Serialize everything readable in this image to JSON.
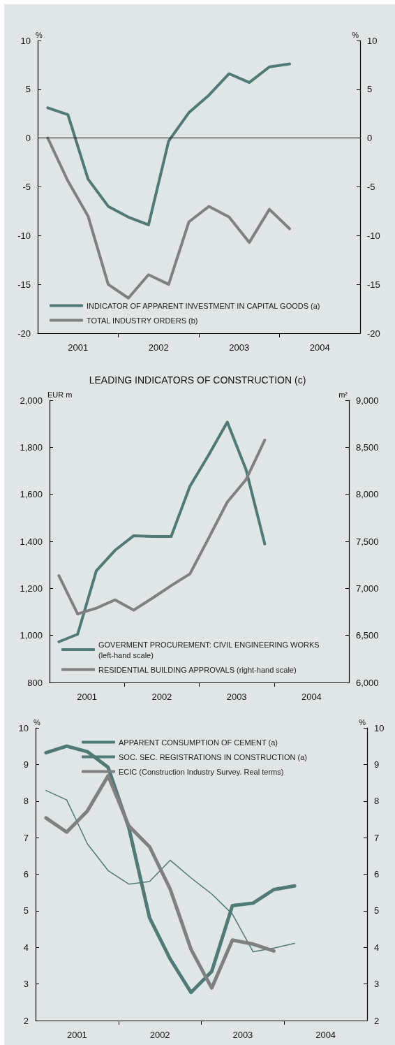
{
  "chart_data": [
    {
      "type": "line",
      "x": [
        2001.125,
        2001.375,
        2001.625,
        2001.875,
        2002.125,
        2002.375,
        2002.625,
        2002.875,
        2003.125,
        2003.375,
        2003.625,
        2003.875,
        2004.125
      ],
      "series": [
        {
          "name": "INDICATOR OF APPARENT INVESTMENT IN CAPITAL GOODS (a)",
          "color": "#4f7a77",
          "values": [
            3.1,
            2.4,
            -4.2,
            -7.0,
            -8.1,
            -8.9,
            -0.3,
            2.6,
            4.4,
            6.6,
            5.7,
            7.3,
            7.6
          ]
        },
        {
          "name": "TOTAL INDUSTRY ORDERS (b)",
          "color": "#808080",
          "values": [
            0,
            -4.4,
            -8.0,
            -15.0,
            -16.4,
            -14.0,
            -15.0,
            -8.6,
            -7.0,
            -8.1,
            -10.7,
            -7.3,
            -9.3
          ]
        }
      ],
      "xlim": [
        2001,
        2005
      ],
      "xticks": [
        {
          "value": 2001.5,
          "label": "2001"
        },
        {
          "value": 2002,
          "label": null
        },
        {
          "value": 2002.5,
          "label": "2002"
        },
        {
          "value": 2003,
          "label": null
        },
        {
          "value": 2003.5,
          "label": "2003"
        },
        {
          "value": 2004,
          "label": null
        },
        {
          "value": 2004.5,
          "label": "2004"
        }
      ],
      "ylim": [
        -20,
        10
      ],
      "yticks": [
        -20,
        -15,
        -10,
        -5,
        0,
        5,
        10
      ],
      "ylabel": "%",
      "y2lim": [
        -20,
        10
      ],
      "y2ticks": [
        -20,
        -15,
        -10,
        -5,
        0,
        5,
        10
      ],
      "y2label": "%",
      "ref_lines": [
        {
          "axis": "y",
          "value": 0,
          "color": "#000000"
        }
      ],
      "legend": "bottom left",
      "marker": "none",
      "line_style": "solid"
    },
    {
      "type": "line",
      "title": "LEADING INDICATORS OF CONSTRUCTION (c)",
      "x": [
        2001.125,
        2001.375,
        2001.625,
        2001.875,
        2002.125,
        2002.375,
        2002.625,
        2002.875,
        2003.125,
        2003.375,
        2003.625,
        2003.875
      ],
      "series": [
        {
          "name": "GOVERMENT PROCUREMENT: CIVIL ENGINEERING WORKS (left-hand scale)",
          "color": "#4f7a77",
          "values": [
            973,
            1005,
            1275,
            1362,
            1424,
            1421,
            1421,
            1634,
            1767,
            1907,
            1705,
            1389
          ]
        },
        {
          "name": "RESIDENTIAL BUILDING APPROVALS (right-hand scale)",
          "color": "#808080",
          "axis": "y2",
          "values": [
            7135,
            6729,
            6790,
            6878,
            6769,
            6897,
            7029,
            7154,
            7533,
            7918,
            8157,
            8576
          ]
        }
      ],
      "xlim": [
        2001,
        2005
      ],
      "xticks": [
        {
          "value": 2001.5,
          "label": "2001"
        },
        {
          "value": 2002,
          "label": null
        },
        {
          "value": 2002.5,
          "label": "2002"
        },
        {
          "value": 2003,
          "label": null
        },
        {
          "value": 2003.5,
          "label": "2003"
        },
        {
          "value": 2004,
          "label": null
        },
        {
          "value": 2004.5,
          "label": "2004"
        }
      ],
      "ylim": [
        800,
        2000
      ],
      "yticks": [
        800,
        {
          "value": 1000,
          "label": "1,000"
        },
        {
          "value": 1200,
          "label": "1,200"
        },
        {
          "value": 1400,
          "label": "1,400"
        },
        {
          "value": 1600,
          "label": "1,600"
        },
        {
          "value": 1800,
          "label": "1,800"
        },
        {
          "value": 2000,
          "label": "2,000"
        }
      ],
      "ylabel": "EUR m",
      "y2lim": [
        6000,
        9000
      ],
      "y2ticks": [
        {
          "value": 6000,
          "label": "6,000"
        },
        {
          "value": 6500,
          "label": "6,500"
        },
        {
          "value": 7000,
          "label": "7,000"
        },
        {
          "value": 7500,
          "label": "7,500"
        },
        {
          "value": 8000,
          "label": "8,000"
        },
        {
          "value": 8500,
          "label": "8,500"
        },
        {
          "value": 9000,
          "label": "9,000"
        }
      ],
      "y2label": "m²",
      "legend": "bottom left",
      "marker": "none",
      "line_style": "solid"
    },
    {
      "type": "line",
      "x": [
        2001.125,
        2001.375,
        2001.625,
        2001.875,
        2002.125,
        2002.375,
        2002.625,
        2002.875,
        2003.125,
        2003.375,
        2003.625,
        2003.875,
        2004.125
      ],
      "series": [
        {
          "name": "APPARENT CONSUMPTION OF CEMENT (a)",
          "color": "#4f7a77",
          "values": [
            9.32,
            9.5,
            9.35,
            8.92,
            7.27,
            4.81,
            3.68,
            2.77,
            3.34,
            5.14,
            5.21,
            5.58,
            5.68
          ]
        },
        {
          "name": "SOC. SEC. REGISTRATIONS IN CONSTRUCTION (a)",
          "color": "#4f7a77",
          "values": [
            8.29,
            8.03,
            6.83,
            6.1,
            5.73,
            5.8,
            6.38,
            5.9,
            5.46,
            4.91,
            3.88,
            3.98,
            4.11
          ]
        },
        {
          "name": "ECIC (Construction Industry Survey. Real terms)",
          "color": "#808080",
          "values": [
            7.54,
            7.15,
            7.73,
            8.69,
            7.32,
            6.75,
            5.59,
            3.95,
            2.89,
            4.2,
            4.09,
            3.9,
            null
          ]
        }
      ],
      "xlim": [
        2001,
        2005
      ],
      "xticks": [
        {
          "value": 2001.5,
          "label": "2001"
        },
        {
          "value": 2002,
          "label": null
        },
        {
          "value": 2002.5,
          "label": "2002"
        },
        {
          "value": 2003,
          "label": null
        },
        {
          "value": 2003.5,
          "label": "2003"
        },
        {
          "value": 2004,
          "label": null
        },
        {
          "value": 2004.5,
          "label": "2004"
        }
      ],
      "ylim": [
        2,
        10
      ],
      "yticks": [
        2,
        3,
        4,
        5,
        6,
        7,
        8,
        9,
        10
      ],
      "ylabel": "%",
      "y2lim": [
        2,
        10
      ],
      "y2ticks": [
        2,
        3,
        4,
        5,
        6,
        7,
        8,
        9,
        10
      ],
      "y2label": "%",
      "legend": "top right",
      "marker": "none",
      "line_style": "solid"
    }
  ]
}
